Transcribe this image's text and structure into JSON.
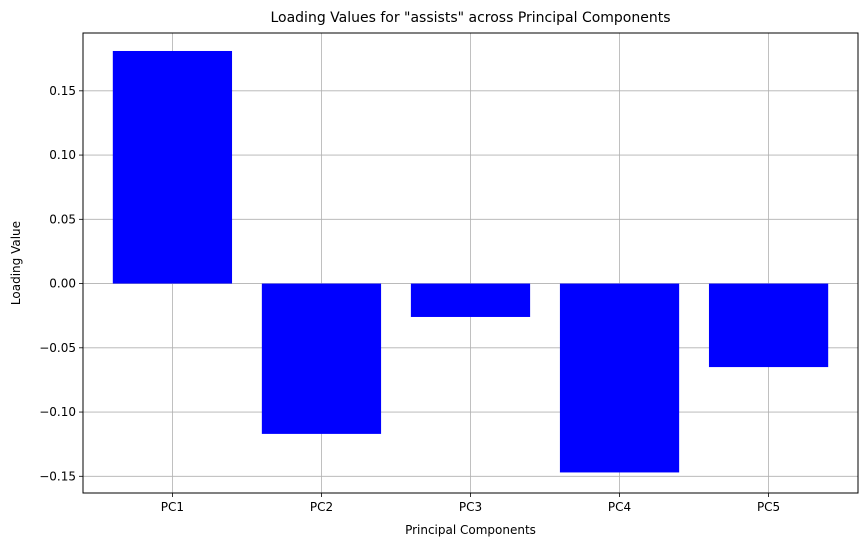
{
  "chart_data": {
    "type": "bar",
    "title": "Loading Values for \"assists\" across Principal Components",
    "xlabel": "Principal Components",
    "ylabel": "Loading Value",
    "categories": [
      "PC1",
      "PC2",
      "PC3",
      "PC4",
      "PC5"
    ],
    "values": [
      0.181,
      -0.117,
      -0.026,
      -0.147,
      -0.065
    ],
    "ylim": [
      -0.163,
      0.195
    ],
    "yticks": [
      -0.15,
      -0.1,
      -0.05,
      0.0,
      0.05,
      0.1,
      0.15
    ],
    "ytick_labels": [
      "−0.15",
      "−0.10",
      "−0.05",
      "0.00",
      "0.05",
      "0.10",
      "0.15"
    ],
    "bar_color": "#0000ff",
    "grid": true
  }
}
